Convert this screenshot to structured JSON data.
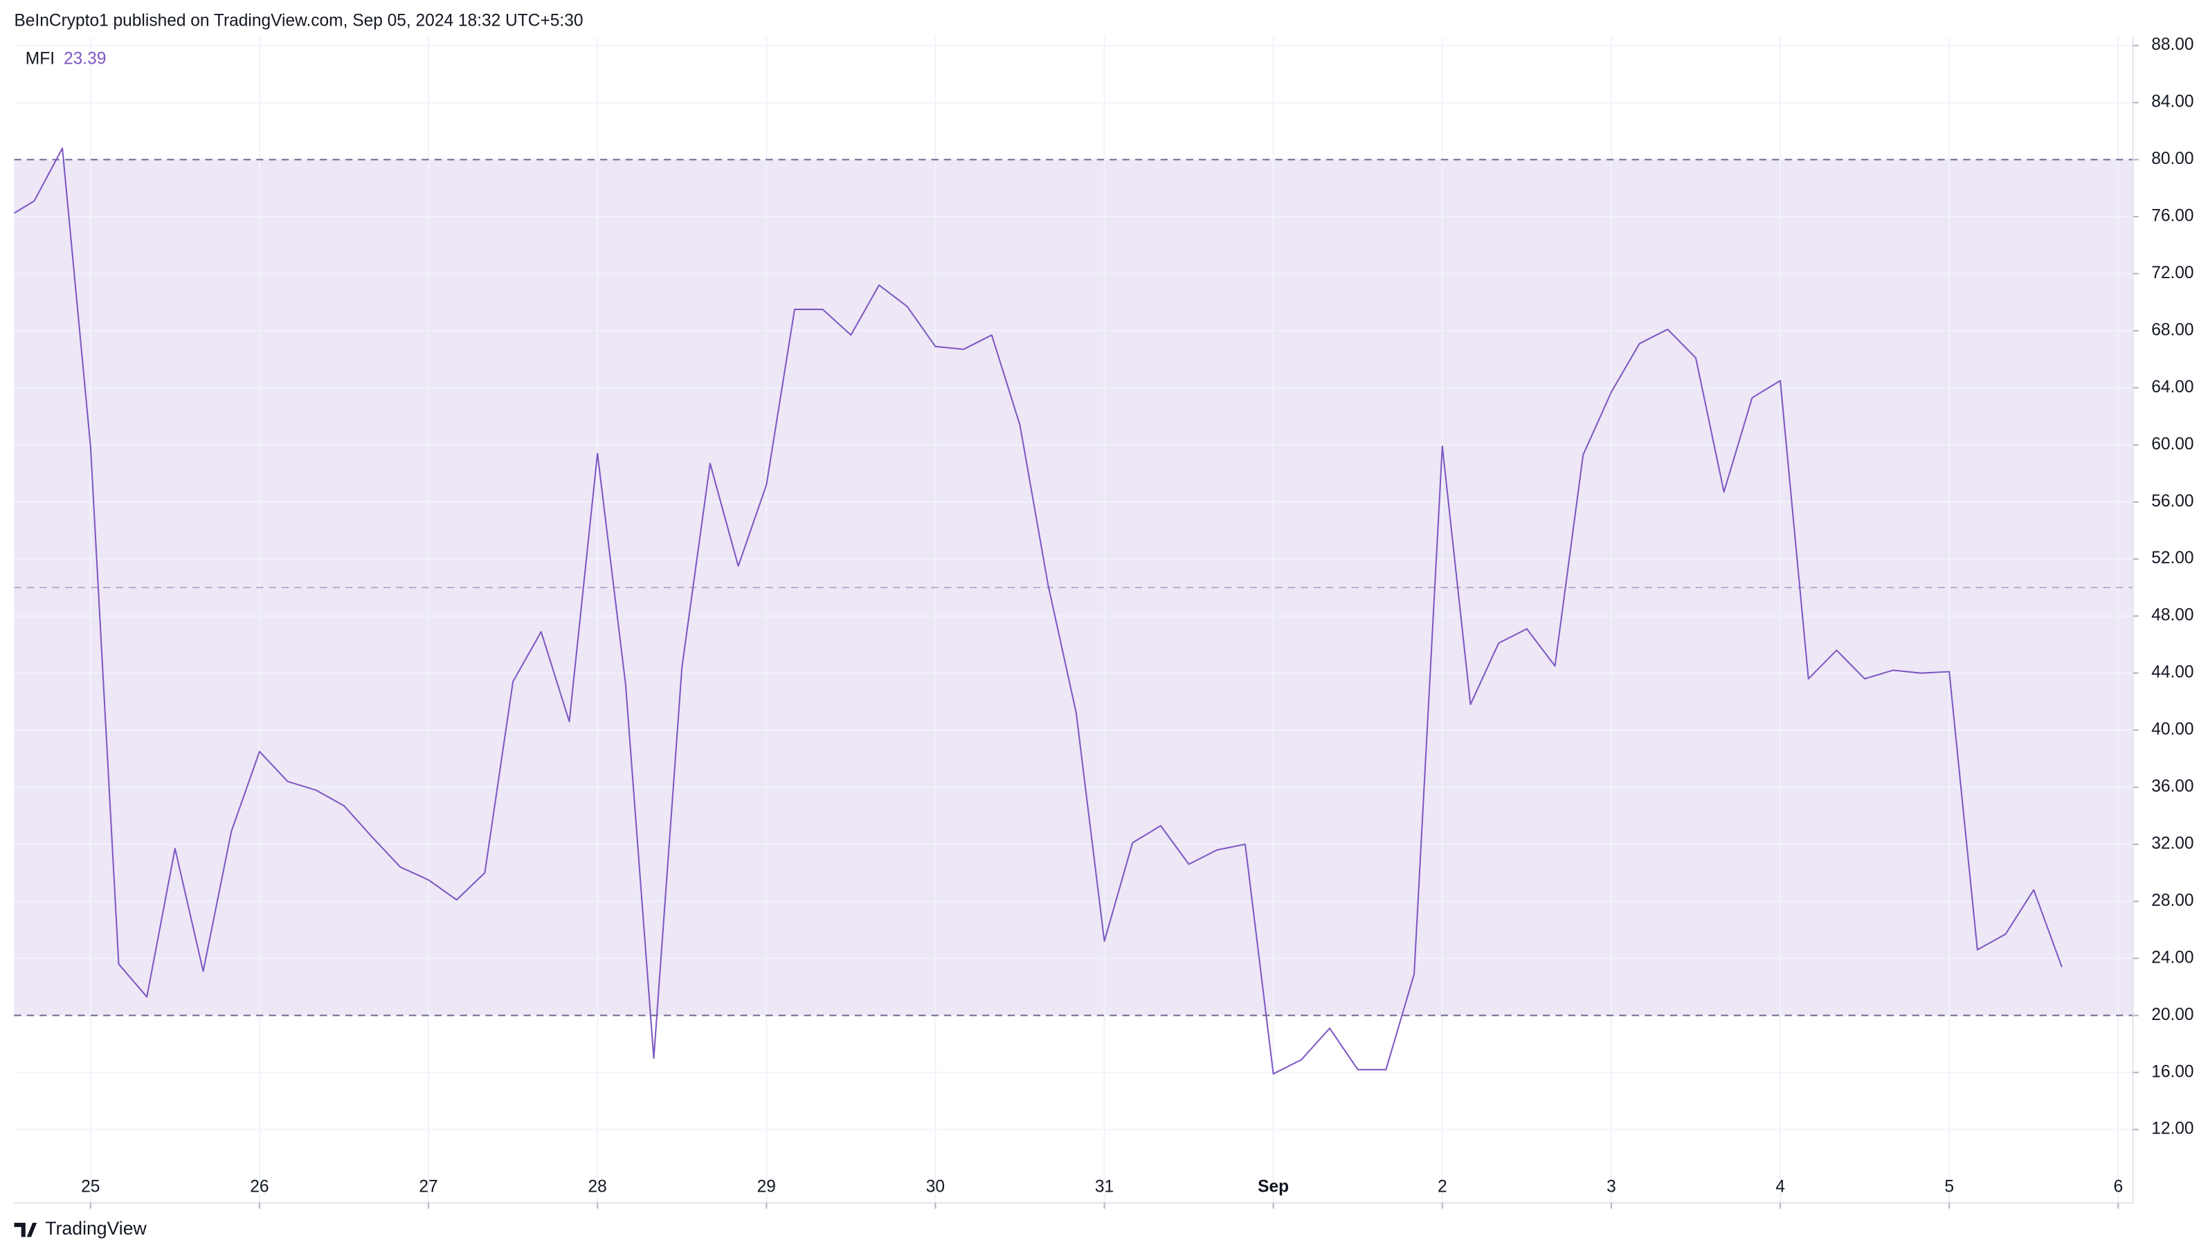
{
  "header": {
    "title": "BeInCrypto1 published on TradingView.com, Sep 05, 2024 18:32 UTC+5:30"
  },
  "footer": {
    "brand": "TradingView"
  },
  "chart_data": {
    "type": "line",
    "series": [
      {
        "name": "MFI",
        "color": "#7e57c2",
        "values": [
          75.9,
          77.1,
          80.8,
          59.9,
          23.6,
          21.3,
          31.7,
          23.1,
          32.9,
          38.5,
          36.4,
          35.8,
          34.7,
          32.5,
          30.4,
          29.5,
          28.1,
          30.0,
          43.4,
          46.9,
          40.6,
          59.4,
          43.2,
          17.0,
          44.4,
          58.7,
          51.5,
          57.2,
          69.5,
          69.5,
          67.7,
          71.2,
          69.7,
          66.9,
          66.7,
          67.7,
          61.4,
          50.2,
          41.2,
          25.2,
          32.1,
          33.3,
          30.6,
          31.6,
          32.0,
          15.9,
          16.9,
          19.1,
          16.2,
          16.2,
          22.9,
          59.9,
          41.8,
          46.1,
          47.1,
          44.5,
          59.3,
          63.7,
          67.1,
          68.1,
          66.1,
          56.7,
          63.3,
          64.5,
          43.6,
          45.6,
          43.6,
          44.2,
          44.0,
          44.1,
          24.6,
          25.7,
          28.8,
          23.39
        ]
      }
    ],
    "x": [
      -12,
      -8,
      -4,
      0,
      4,
      8,
      12,
      16,
      20,
      24,
      28,
      32,
      36,
      40,
      44,
      48,
      52,
      56,
      60,
      64,
      68,
      72,
      76,
      80,
      84,
      88,
      92,
      96,
      100,
      104,
      108,
      112,
      116,
      120,
      124,
      128,
      132,
      136,
      140,
      144,
      148,
      152,
      156,
      160,
      164,
      168,
      172,
      176,
      180,
      184,
      188,
      192,
      196,
      200,
      204,
      208,
      212,
      216,
      220,
      224,
      228,
      232,
      236,
      240,
      244,
      248,
      252,
      256,
      260,
      264,
      268,
      272,
      276,
      280
    ],
    "xlim": [
      -10.85,
      290.1
    ],
    "xticks": [
      {
        "value": 0,
        "label": "25"
      },
      {
        "value": 24,
        "label": "26"
      },
      {
        "value": 48,
        "label": "27"
      },
      {
        "value": 72,
        "label": "28"
      },
      {
        "value": 96,
        "label": "29"
      },
      {
        "value": 120,
        "label": "30"
      },
      {
        "value": 144,
        "label": "31"
      },
      {
        "value": 168,
        "label": "Sep",
        "bold": true
      },
      {
        "value": 192,
        "label": "2"
      },
      {
        "value": 216,
        "label": "3"
      },
      {
        "value": 240,
        "label": "4"
      },
      {
        "value": 264,
        "label": "5"
      },
      {
        "value": 288,
        "label": "6"
      }
    ],
    "ylim": [
      6.85,
      88.6
    ],
    "yticks": [
      {
        "value": 12,
        "label": "12.00"
      },
      {
        "value": 16,
        "label": "16.00"
      },
      {
        "value": 20,
        "label": "20.00"
      },
      {
        "value": 24,
        "label": "24.00"
      },
      {
        "value": 28,
        "label": "28.00"
      },
      {
        "value": 32,
        "label": "32.00"
      },
      {
        "value": 36,
        "label": "36.00"
      },
      {
        "value": 40,
        "label": "40.00"
      },
      {
        "value": 44,
        "label": "44.00"
      },
      {
        "value": 48,
        "label": "48.00"
      },
      {
        "value": 52,
        "label": "52.00"
      },
      {
        "value": 56,
        "label": "56.00"
      },
      {
        "value": 60,
        "label": "60.00"
      },
      {
        "value": 64,
        "label": "64.00"
      },
      {
        "value": 68,
        "label": "68.00"
      },
      {
        "value": 72,
        "label": "72.00"
      },
      {
        "value": 76,
        "label": "76.00"
      },
      {
        "value": 80,
        "label": "80.00"
      },
      {
        "value": 84,
        "label": "84.00"
      },
      {
        "value": 88,
        "label": "88.00"
      }
    ],
    "band": [
      20,
      80
    ],
    "band_color": "#ede7f6",
    "hlines": [
      80,
      50,
      20
    ],
    "grid": true
  }
}
